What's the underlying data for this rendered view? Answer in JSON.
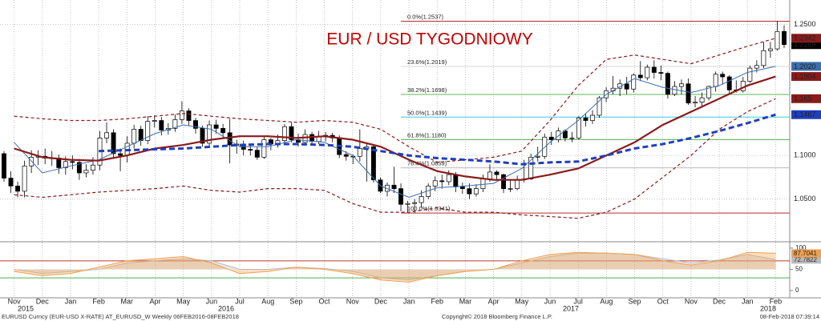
{
  "chart_data": [
    {
      "type": "candlestick",
      "title": "EUR / USD TYGODNIOWY",
      "categories": [
        "Nov",
        "Dec",
        "Jan",
        "Feb",
        "Mar",
        "Apr",
        "May",
        "Jun",
        "Jul",
        "Aug",
        "Sep",
        "Oct",
        "Nov",
        "Dec",
        "Jan",
        "Feb",
        "Mar",
        "Apr",
        "May",
        "Jun",
        "Jul",
        "Aug",
        "Sep",
        "Oct",
        "Nov",
        "Dec",
        "Jan",
        "Feb"
      ],
      "years": [
        "2015",
        "2016",
        "2017",
        "2018"
      ],
      "ylim": [
        1.003,
        1.278
      ],
      "yticks": [
        {
          "value": 1.05,
          "label": "1.0500"
        },
        {
          "value": 1.1,
          "label": "1.1000"
        },
        {
          "value": 1.25,
          "label": "1.2500"
        }
      ],
      "grid": true,
      "ohlc": [
        [
          1.102,
          1.105,
          1.07,
          1.074
        ],
        [
          1.074,
          1.082,
          1.057,
          1.065
        ],
        [
          1.065,
          1.07,
          1.052,
          1.059
        ],
        [
          1.059,
          1.094,
          1.052,
          1.088
        ],
        [
          1.088,
          1.106,
          1.08,
          1.098
        ],
        [
          1.098,
          1.106,
          1.089,
          1.099
        ],
        [
          1.099,
          1.108,
          1.09,
          1.097
        ],
        [
          1.097,
          1.105,
          1.088,
          1.097
        ],
        [
          1.097,
          1.101,
          1.079,
          1.086
        ],
        [
          1.086,
          1.099,
          1.078,
          1.093
        ],
        [
          1.093,
          1.1,
          1.084,
          1.092
        ],
        [
          1.092,
          1.096,
          1.072,
          1.08
        ],
        [
          1.08,
          1.09,
          1.075,
          1.083
        ],
        [
          1.083,
          1.098,
          1.078,
          1.089
        ],
        [
          1.089,
          1.128,
          1.083,
          1.12
        ],
        [
          1.12,
          1.138,
          1.114,
          1.126
        ],
        [
          1.126,
          1.13,
          1.096,
          1.102
        ],
        [
          1.102,
          1.108,
          1.082,
          1.1
        ],
        [
          1.1,
          1.122,
          1.092,
          1.114
        ],
        [
          1.114,
          1.135,
          1.108,
          1.13
        ],
        [
          1.13,
          1.134,
          1.111,
          1.117
        ],
        [
          1.117,
          1.145,
          1.113,
          1.139
        ],
        [
          1.139,
          1.146,
          1.132,
          1.14
        ],
        [
          1.14,
          1.144,
          1.123,
          1.129
        ],
        [
          1.129,
          1.137,
          1.124,
          1.131
        ],
        [
          1.131,
          1.147,
          1.127,
          1.141
        ],
        [
          1.141,
          1.162,
          1.136,
          1.151
        ],
        [
          1.151,
          1.154,
          1.134,
          1.14
        ],
        [
          1.14,
          1.143,
          1.125,
          1.131
        ],
        [
          1.131,
          1.134,
          1.11,
          1.114
        ],
        [
          1.114,
          1.14,
          1.111,
          1.135
        ],
        [
          1.135,
          1.141,
          1.125,
          1.131
        ],
        [
          1.131,
          1.136,
          1.12,
          1.126
        ],
        [
          1.126,
          1.142,
          1.091,
          1.112
        ],
        [
          1.112,
          1.118,
          1.102,
          1.113
        ],
        [
          1.113,
          1.117,
          1.1,
          1.107
        ],
        [
          1.107,
          1.113,
          1.1,
          1.106
        ],
        [
          1.106,
          1.11,
          1.095,
          1.098
        ],
        [
          1.098,
          1.123,
          1.096,
          1.118
        ],
        [
          1.118,
          1.12,
          1.106,
          1.113
        ],
        [
          1.113,
          1.124,
          1.109,
          1.117
        ],
        [
          1.117,
          1.136,
          1.113,
          1.133
        ],
        [
          1.133,
          1.138,
          1.115,
          1.118
        ],
        [
          1.118,
          1.125,
          1.11,
          1.115
        ],
        [
          1.115,
          1.13,
          1.112,
          1.124
        ],
        [
          1.124,
          1.127,
          1.113,
          1.116
        ],
        [
          1.116,
          1.128,
          1.113,
          1.122
        ],
        [
          1.122,
          1.127,
          1.116,
          1.123
        ],
        [
          1.123,
          1.126,
          1.115,
          1.12
        ],
        [
          1.12,
          1.123,
          1.097,
          1.101
        ],
        [
          1.101,
          1.105,
          1.094,
          1.099
        ],
        [
          1.099,
          1.101,
          1.09,
          1.099
        ],
        [
          1.099,
          1.13,
          1.093,
          1.108
        ],
        [
          1.108,
          1.113,
          1.07,
          1.11
        ],
        [
          1.11,
          1.112,
          1.069,
          1.072
        ],
        [
          1.072,
          1.075,
          1.057,
          1.059
        ],
        [
          1.059,
          1.069,
          1.053,
          1.066
        ],
        [
          1.066,
          1.087,
          1.057,
          1.062
        ],
        [
          1.062,
          1.068,
          1.036,
          1.044
        ],
        [
          1.044,
          1.048,
          1.035,
          1.045
        ],
        [
          1.045,
          1.05,
          1.034,
          1.046
        ],
        [
          1.046,
          1.06,
          1.04,
          1.053
        ],
        [
          1.053,
          1.068,
          1.05,
          1.065
        ],
        [
          1.065,
          1.076,
          1.059,
          1.071
        ],
        [
          1.071,
          1.078,
          1.062,
          1.07
        ],
        [
          1.07,
          1.083,
          1.066,
          1.078
        ],
        [
          1.078,
          1.081,
          1.058,
          1.064
        ],
        [
          1.064,
          1.069,
          1.056,
          1.062
        ],
        [
          1.062,
          1.068,
          1.05,
          1.056
        ],
        [
          1.056,
          1.067,
          1.053,
          1.062
        ],
        [
          1.062,
          1.078,
          1.058,
          1.073
        ],
        [
          1.073,
          1.09,
          1.07,
          1.081
        ],
        [
          1.081,
          1.083,
          1.071,
          1.078
        ],
        [
          1.078,
          1.079,
          1.057,
          1.062
        ],
        [
          1.062,
          1.072,
          1.058,
          1.062
        ],
        [
          1.062,
          1.077,
          1.06,
          1.072
        ],
        [
          1.072,
          1.095,
          1.069,
          1.073
        ],
        [
          1.073,
          1.102,
          1.072,
          1.098
        ],
        [
          1.098,
          1.11,
          1.093,
          1.099
        ],
        [
          1.099,
          1.125,
          1.096,
          1.121
        ],
        [
          1.121,
          1.127,
          1.112,
          1.118
        ],
        [
          1.118,
          1.132,
          1.115,
          1.128
        ],
        [
          1.128,
          1.13,
          1.116,
          1.12
        ],
        [
          1.12,
          1.127,
          1.115,
          1.12
        ],
        [
          1.12,
          1.145,
          1.118,
          1.143
        ],
        [
          1.143,
          1.148,
          1.133,
          1.14
        ],
        [
          1.14,
          1.152,
          1.136,
          1.146
        ],
        [
          1.146,
          1.168,
          1.143,
          1.166
        ],
        [
          1.166,
          1.178,
          1.161,
          1.174
        ],
        [
          1.174,
          1.191,
          1.17,
          1.177
        ],
        [
          1.177,
          1.187,
          1.168,
          1.182
        ],
        [
          1.182,
          1.19,
          1.17,
          1.176
        ],
        [
          1.176,
          1.194,
          1.172,
          1.192
        ],
        [
          1.192,
          1.208,
          1.185,
          1.189
        ],
        [
          1.189,
          1.204,
          1.186,
          1.201
        ],
        [
          1.201,
          1.209,
          1.188,
          1.195
        ],
        [
          1.195,
          1.203,
          1.186,
          1.194
        ],
        [
          1.194,
          1.196,
          1.165,
          1.17
        ],
        [
          1.17,
          1.185,
          1.168,
          1.179
        ],
        [
          1.179,
          1.187,
          1.17,
          1.182
        ],
        [
          1.182,
          1.188,
          1.158,
          1.16
        ],
        [
          1.16,
          1.168,
          1.155,
          1.161
        ],
        [
          1.161,
          1.172,
          1.155,
          1.166
        ],
        [
          1.166,
          1.18,
          1.163,
          1.179
        ],
        [
          1.179,
          1.196,
          1.173,
          1.193
        ],
        [
          1.193,
          1.196,
          1.181,
          1.19
        ],
        [
          1.19,
          1.192,
          1.17,
          1.175
        ],
        [
          1.175,
          1.186,
          1.172,
          1.174
        ],
        [
          1.174,
          1.19,
          1.172,
          1.185
        ],
        [
          1.185,
          1.203,
          1.183,
          1.2
        ],
        [
          1.2,
          1.209,
          1.195,
          1.203
        ],
        [
          1.203,
          1.23,
          1.2,
          1.22
        ],
        [
          1.22,
          1.23,
          1.212,
          1.222
        ],
        [
          1.222,
          1.2537,
          1.22,
          1.242
        ],
        [
          1.242,
          1.249,
          1.223,
          1.2269
        ]
      ],
      "series": [
        {
          "color": "#8b1a1a",
          "dash": true,
          "width": 1.2,
          "values": [
            1.145,
            1.142,
            1.14,
            1.14,
            1.142,
            1.145,
            1.148,
            1.145,
            1.142,
            1.14,
            1.138,
            1.14,
            1.138,
            1.13,
            1.11,
            1.092,
            1.095,
            1.098,
            1.105,
            1.14,
            1.18,
            1.21,
            1.215,
            1.21,
            1.205,
            1.215,
            1.225,
            1.2342
          ]
        },
        {
          "color": "#8b1a1a",
          "dash": true,
          "width": 1.2,
          "values": [
            1.055,
            1.052,
            1.055,
            1.058,
            1.06,
            1.062,
            1.065,
            1.06,
            1.058,
            1.062,
            1.062,
            1.06,
            1.045,
            1.035,
            1.035,
            1.04,
            1.035,
            1.035,
            1.032,
            1.03,
            1.028,
            1.035,
            1.05,
            1.075,
            1.1,
            1.13,
            1.15,
            1.165
          ]
        },
        {
          "color": "#3a6fb0",
          "dash": false,
          "width": 1,
          "values": [
            1.115,
            1.08,
            1.088,
            1.095,
            1.11,
            1.125,
            1.135,
            1.13,
            1.11,
            1.11,
            1.118,
            1.115,
            1.1,
            1.065,
            1.052,
            1.063,
            1.065,
            1.068,
            1.085,
            1.115,
            1.14,
            1.17,
            1.188,
            1.178,
            1.172,
            1.18,
            1.195,
            1.202
          ],
          "value_labels": [
            null,
            null,
            null,
            null,
            null,
            null,
            null,
            null,
            null,
            null,
            null,
            null,
            null,
            null,
            null,
            null,
            null,
            null,
            null,
            null,
            null,
            null,
            null,
            null,
            null,
            null,
            null,
            "1.2020"
          ]
        },
        {
          "color": "#8b1a1a",
          "dash": false,
          "width": 2.2,
          "values": [
            1.108,
            1.098,
            1.095,
            1.094,
            1.1,
            1.108,
            1.112,
            1.118,
            1.122,
            1.122,
            1.12,
            1.122,
            1.118,
            1.11,
            1.095,
            1.082,
            1.076,
            1.072,
            1.072,
            1.078,
            1.085,
            1.1,
            1.115,
            1.135,
            1.15,
            1.165,
            1.18,
            1.1904
          ]
        },
        {
          "color": "#1f3fbf",
          "dash": true,
          "width": 3,
          "values": [
            null,
            null,
            null,
            1.105,
            1.106,
            1.107,
            1.108,
            1.11,
            1.112,
            1.113,
            1.113,
            1.112,
            1.11,
            1.105,
            1.1,
            1.097,
            1.095,
            1.093,
            1.09,
            1.092,
            1.093,
            1.1,
            1.108,
            1.113,
            1.12,
            1.128,
            1.137,
            1.1467
          ]
        }
      ],
      "fib_levels": [
        {
          "value": 1.2537,
          "label": "0.0%(1.2537)",
          "color": "#b03030"
        },
        {
          "value": 1.2019,
          "label": "23.6%(1.2019)",
          "color": "#d8d8d8"
        },
        {
          "value": 1.1698,
          "label": "38.2%(1.1698)",
          "color": "#5cb85c"
        },
        {
          "value": 1.1439,
          "label": "50.0%(1.1439)",
          "color": "#40c8e0"
        },
        {
          "value": 1.118,
          "label": "61.8%(1.1180)",
          "color": "#5cb85c"
        },
        {
          "value": 1.0859,
          "label": "76.4%(1.0859)",
          "color": "#bbbbbb"
        },
        {
          "value": 1.0341,
          "label": "100.0%(1.0341)",
          "color": "#b03030"
        }
      ]
    },
    {
      "type": "line",
      "ylim": [
        -15,
        113
      ],
      "yticks": [
        0,
        50,
        100
      ],
      "hlines": [
        30,
        70
      ],
      "series": [
        {
          "color": "#bbbbbb",
          "values": [
            50,
            40,
            45,
            50,
            65,
            70,
            75,
            70,
            50,
            50,
            55,
            52,
            45,
            30,
            25,
            35,
            45,
            50,
            65,
            80,
            88,
            88,
            85,
            75,
            65,
            72,
            85,
            72.7822
          ]
        },
        {
          "color": "#f0a050",
          "values": [
            45,
            35,
            40,
            55,
            70,
            75,
            80,
            65,
            40,
            45,
            55,
            50,
            40,
            25,
            20,
            35,
            45,
            50,
            70,
            85,
            90,
            88,
            85,
            70,
            60,
            70,
            90,
            87.7041
          ]
        }
      ]
    }
  ],
  "footer": {
    "left": "EURUSD Curncy (EUR-USD X-RATE) AT_EURUSD_W  Weekly 06FEB2016-08FEB2018",
    "center": "Copyright© 2018 Bloomberg Finance L.P.",
    "right": "08-Feb-2018 07:39:14"
  }
}
